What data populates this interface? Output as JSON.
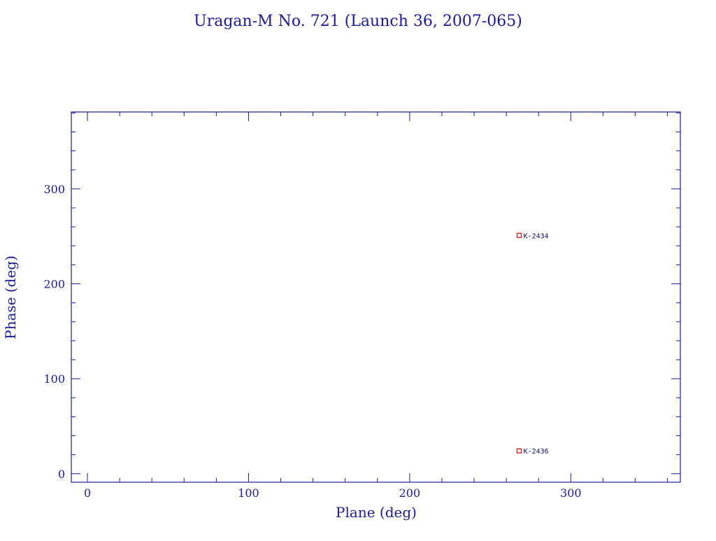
{
  "chart_data": {
    "type": "scatter",
    "title": "Uragan-M No. 721 (Launch 36, 2007-065)",
    "xlabel": "Plane (deg)",
    "ylabel": "Phase (deg)",
    "xlim": [
      -10,
      368
    ],
    "ylim": [
      -9,
      381
    ],
    "xticks": [
      0,
      100,
      200,
      300
    ],
    "yticks": [
      0,
      100,
      200,
      300
    ],
    "x_minor_step": 20,
    "y_minor_step": 20,
    "grid": false,
    "points": [
      {
        "label": "K-2434",
        "x": 268,
        "y": 251
      },
      {
        "label": "K-2436",
        "x": 268,
        "y": 24
      }
    ],
    "colors": {
      "axes": "#1a1aa0",
      "text": "#1a1aa0",
      "marker": "#e03030",
      "point_label": "#101070"
    }
  }
}
